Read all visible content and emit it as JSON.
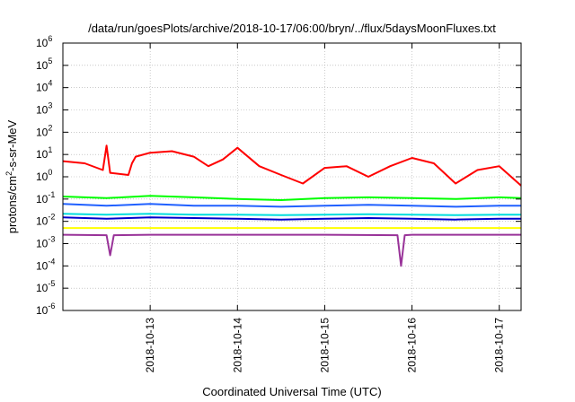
{
  "chart_data": {
    "type": "line",
    "title": "/data/run/goesPlots/archive/2018-10-17/06:00/bryn/../flux/5daysMoonFluxes.txt",
    "xlabel": "Coordinated Universal Time (UTC)",
    "ylabel": "protons/cm2-s-sr-MeV",
    "ylabel_parts": {
      "pre": "protons/cm",
      "sup": "2",
      "post": "-s-sr-MeV"
    },
    "y_scale": "log",
    "ylim": [
      1e-06,
      1000000.0
    ],
    "y_ticks": [
      {
        "value": 1e-06,
        "base": "10",
        "exp": "-6"
      },
      {
        "value": 1e-05,
        "base": "10",
        "exp": "-5"
      },
      {
        "value": 0.0001,
        "base": "10",
        "exp": "-4"
      },
      {
        "value": 0.001,
        "base": "10",
        "exp": "-3"
      },
      {
        "value": 0.01,
        "base": "10",
        "exp": "-2"
      },
      {
        "value": 0.1,
        "base": "10",
        "exp": "-1"
      },
      {
        "value": 1,
        "base": "10",
        "exp": "0"
      },
      {
        "value": 10,
        "base": "10",
        "exp": "1"
      },
      {
        "value": 100,
        "base": "10",
        "exp": "2"
      },
      {
        "value": 1000,
        "base": "10",
        "exp": "3"
      },
      {
        "value": 10000,
        "base": "10",
        "exp": "4"
      },
      {
        "value": 100000,
        "base": "10",
        "exp": "5"
      },
      {
        "value": 1000000,
        "base": "10",
        "exp": "6"
      }
    ],
    "x_axis": "date",
    "xlim": [
      "2018-10-12 00:00",
      "2018-10-17 06:00"
    ],
    "x_ticks": [
      "2018-10-13",
      "2018-10-14",
      "2018-10-15",
      "2018-10-16",
      "2018-10-17"
    ],
    "grid": true,
    "legend": "none",
    "series": [
      {
        "color": "#ff0000",
        "x": [
          "2018-10-12 00:00",
          "2018-10-12 06:00",
          "2018-10-12 11:00",
          "2018-10-12 12:00",
          "2018-10-12 13:00",
          "2018-10-12 18:00",
          "2018-10-12 19:00",
          "2018-10-12 20:00",
          "2018-10-13 00:00",
          "2018-10-13 06:00",
          "2018-10-13 12:00",
          "2018-10-13 16:00",
          "2018-10-13 20:00",
          "2018-10-14 00:00",
          "2018-10-14 06:00",
          "2018-10-14 12:00",
          "2018-10-14 18:00",
          "2018-10-15 00:00",
          "2018-10-15 06:00",
          "2018-10-15 12:00",
          "2018-10-15 18:00",
          "2018-10-16 00:00",
          "2018-10-16 06:00",
          "2018-10-16 12:00",
          "2018-10-16 18:00",
          "2018-10-17 00:00",
          "2018-10-17 06:00"
        ],
        "values": [
          5,
          4,
          2,
          25,
          1.5,
          1.2,
          4,
          8,
          12,
          14,
          8,
          3,
          6,
          20,
          3,
          1.2,
          0.5,
          2.5,
          3,
          1,
          3,
          7,
          4,
          0.5,
          2,
          3,
          0.4
        ]
      },
      {
        "color": "#00ff00",
        "x": [
          "2018-10-12 00:00",
          "2018-10-12 12:00",
          "2018-10-13 00:00",
          "2018-10-13 12:00",
          "2018-10-14 00:00",
          "2018-10-14 12:00",
          "2018-10-15 00:00",
          "2018-10-15 12:00",
          "2018-10-16 00:00",
          "2018-10-16 12:00",
          "2018-10-17 00:00",
          "2018-10-17 06:00"
        ],
        "values": [
          0.13,
          0.11,
          0.14,
          0.12,
          0.1,
          0.09,
          0.11,
          0.12,
          0.11,
          0.1,
          0.12,
          0.11
        ]
      },
      {
        "color": "#2060ff",
        "x": [
          "2018-10-12 00:00",
          "2018-10-12 12:00",
          "2018-10-13 00:00",
          "2018-10-13 12:00",
          "2018-10-14 00:00",
          "2018-10-14 12:00",
          "2018-10-15 00:00",
          "2018-10-15 12:00",
          "2018-10-16 00:00",
          "2018-10-16 12:00",
          "2018-10-17 00:00",
          "2018-10-17 06:00"
        ],
        "values": [
          0.06,
          0.05,
          0.06,
          0.05,
          0.05,
          0.045,
          0.05,
          0.055,
          0.05,
          0.045,
          0.05,
          0.05
        ]
      },
      {
        "color": "#00dddd",
        "x": [
          "2018-10-12 00:00",
          "2018-10-12 12:00",
          "2018-10-13 00:00",
          "2018-10-13 12:00",
          "2018-10-14 00:00",
          "2018-10-14 12:00",
          "2018-10-15 00:00",
          "2018-10-15 12:00",
          "2018-10-16 00:00",
          "2018-10-16 12:00",
          "2018-10-17 00:00",
          "2018-10-17 06:00"
        ],
        "values": [
          0.022,
          0.02,
          0.022,
          0.02,
          0.02,
          0.019,
          0.02,
          0.021,
          0.02,
          0.019,
          0.02,
          0.02
        ]
      },
      {
        "color": "#0000cc",
        "x": [
          "2018-10-12 00:00",
          "2018-10-12 12:00",
          "2018-10-13 00:00",
          "2018-10-13 12:00",
          "2018-10-14 00:00",
          "2018-10-14 12:00",
          "2018-10-15 00:00",
          "2018-10-15 12:00",
          "2018-10-16 00:00",
          "2018-10-16 12:00",
          "2018-10-17 00:00",
          "2018-10-17 06:00"
        ],
        "values": [
          0.015,
          0.013,
          0.015,
          0.014,
          0.013,
          0.012,
          0.013,
          0.014,
          0.013,
          0.012,
          0.013,
          0.013
        ]
      },
      {
        "color": "#ffff00",
        "x": [
          "2018-10-12 00:00",
          "2018-10-13 00:00",
          "2018-10-14 00:00",
          "2018-10-15 00:00",
          "2018-10-16 00:00",
          "2018-10-17 00:00",
          "2018-10-17 06:00"
        ],
        "values": [
          0.005,
          0.005,
          0.005,
          0.005,
          0.005,
          0.005,
          0.005
        ]
      },
      {
        "color": "#993399",
        "x": [
          "2018-10-12 00:00",
          "2018-10-12 12:00",
          "2018-10-12 13:00",
          "2018-10-12 14:00",
          "2018-10-13 00:00",
          "2018-10-14 00:00",
          "2018-10-15 00:00",
          "2018-10-15 20:00",
          "2018-10-15 21:00",
          "2018-10-15 22:00",
          "2018-10-16 00:00",
          "2018-10-17 00:00",
          "2018-10-17 06:00"
        ],
        "values": [
          0.0025,
          0.0024,
          0.0003,
          0.0024,
          0.0025,
          0.0025,
          0.0025,
          0.0024,
          0.0001,
          0.0024,
          0.0025,
          0.0025,
          0.0025
        ]
      }
    ]
  }
}
